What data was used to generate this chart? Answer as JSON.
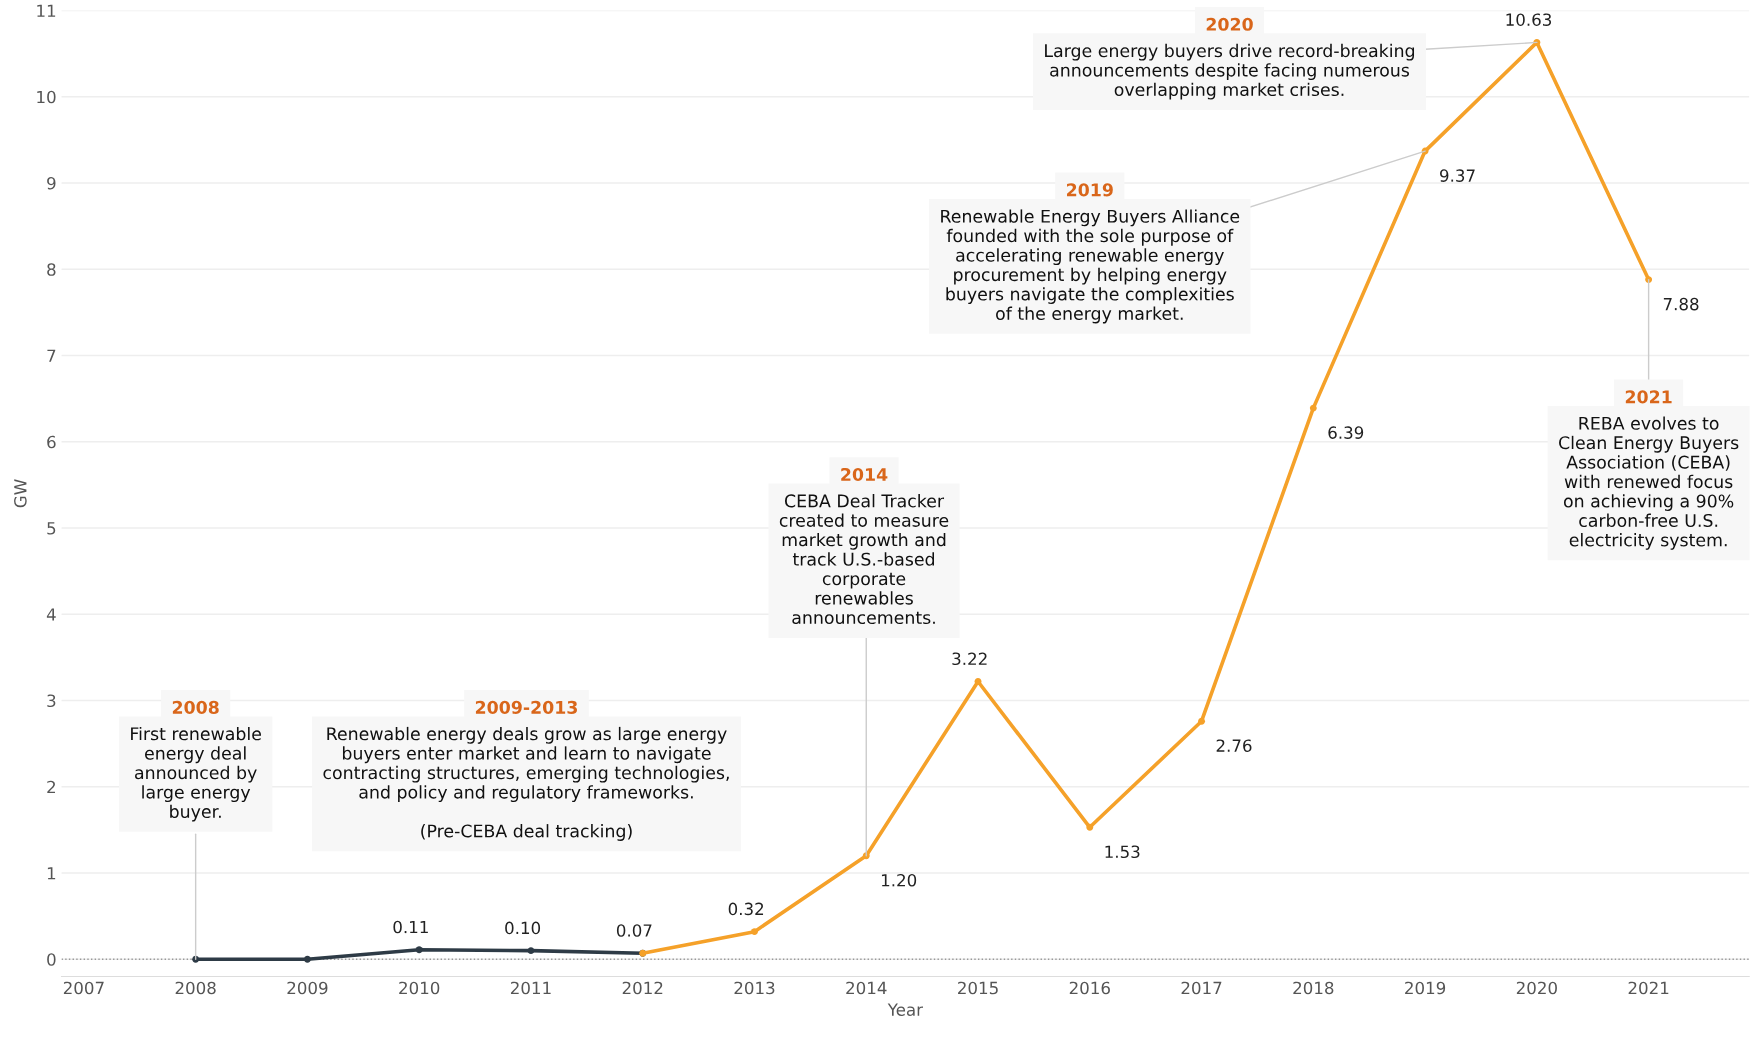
{
  "chart_data": {
    "type": "line",
    "xlabel": "Year",
    "ylabel": "GW",
    "xlim": [
      2006.8,
      2021.9
    ],
    "xticks": [
      2007,
      2008,
      2009,
      2010,
      2011,
      2012,
      2013,
      2014,
      2015,
      2016,
      2017,
      2018,
      2019,
      2020,
      2021
    ],
    "ylim": [
      -0.2,
      11
    ],
    "yticks": [
      0,
      1,
      2,
      3,
      4,
      5,
      6,
      7,
      8,
      9,
      10,
      11
    ],
    "grid": "y",
    "marker": "circle",
    "line_style": "solid",
    "legend": false,
    "ref_lines": [
      {
        "axis": "y",
        "value": 0,
        "line_style": "dotted",
        "color": "#999999"
      }
    ],
    "series": [
      {
        "color": "#2e3b46",
        "x": [
          2008,
          2009,
          2010,
          2011,
          2012
        ],
        "values": [
          0,
          0,
          0.11,
          0.1,
          0.07
        ],
        "value_labels": [
          null,
          null,
          "0.11",
          "0.10",
          "0.07"
        ]
      },
      {
        "color": "#f5a129",
        "x": [
          2012,
          2013,
          2014,
          2015,
          2016,
          2017,
          2018,
          2019,
          2020,
          2021
        ],
        "values": [
          0.07,
          0.32,
          1.2,
          3.22,
          1.53,
          2.76,
          6.39,
          9.37,
          10.63,
          7.88
        ],
        "value_labels": [
          null,
          "0.32",
          "1.20",
          "3.22",
          "1.53",
          "2.76",
          "6.39",
          "9.37",
          "10.63",
          "7.88"
        ]
      }
    ],
    "annotations": [
      {
        "text": "2008\nFirst renewable\nenergy deal\nannounced by\nlarge energy\nbuyer.",
        "x": 2008,
        "y": 0
      },
      "2009-2013\nRenewable energy deals grow as large energy\nbuyers enter market and learn to navigate\ncontracting structures, emerging technologies,\nand policy and regulatory frameworks.\n\n(Pre-CEBA deal tracking)",
      {
        "text": "2014\nCEBA Deal Tracker\ncreated to measure\nmarket growth and\ntrack U.S.-based\ncorporate\nrenewables\nannouncements.",
        "x": 2014,
        "y": 1.2
      },
      {
        "text": "2019\nRenewable Energy Buyers Alliance\nfounded with the sole purpose of\naccelerating renewable energy\nprocurement by helping energy\nbuyers navigate the complexities\nof the energy market.",
        "x": 2019,
        "y": 9.37
      },
      {
        "text": "2020\nLarge energy buyers drive record-breaking\nannouncements despite facing numerous\noverlapping market crises.",
        "x": 2020,
        "y": 10.63
      },
      {
        "text": "2021\nREBA evolves to\nClean Energy Buyers\nAssociation (CEBA)\nwith renewed focus\non achieving a 90%\ncarbon-free U.S.\nelectricity system.",
        "x": 2021,
        "y": 7.88
      }
    ]
  }
}
